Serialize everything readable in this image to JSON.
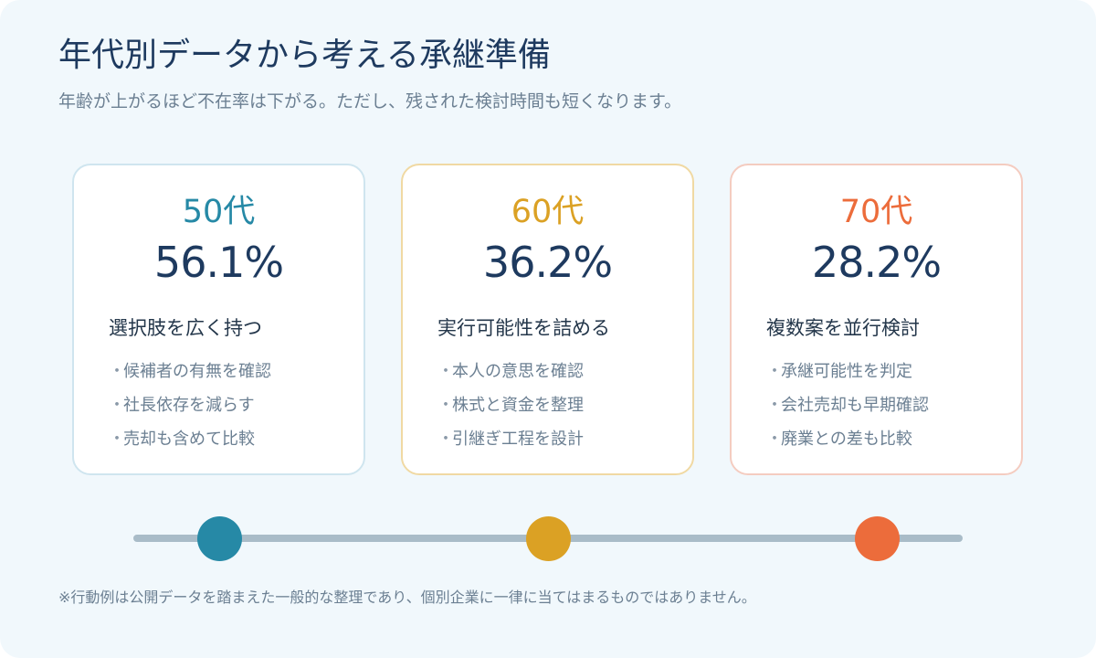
{
  "header": {
    "title": "年代別データから考える承継準備",
    "subtitle": "年齢が上がるほど不在率は下がる。ただし、残された検討時間も短くなります。"
  },
  "colors": {
    "fifties": "#2689a6",
    "sixties": "#dba124",
    "seventies": "#ec6c3b"
  },
  "cards": [
    {
      "age": "50代",
      "rate": "56.1%",
      "heading": "選択肢を広く持つ",
      "items": [
        "候補者の有無を確認",
        "社長依存を減らす",
        "売却も含めて比較"
      ]
    },
    {
      "age": "60代",
      "rate": "36.2%",
      "heading": "実行可能性を詰める",
      "items": [
        "本人の意思を確認",
        "株式と資金を整理",
        "引継ぎ工程を設計"
      ]
    },
    {
      "age": "70代",
      "rate": "28.2%",
      "heading": "複数案を並行検討",
      "items": [
        "承継可能性を判定",
        "会社売却も早期確認",
        "廃業との差も比較"
      ]
    }
  ],
  "bullet_symbol": "・",
  "footnote": "※行動例は公開データを踏まえた一般的な整理であり、個別企業に一律に当てはまるものではありません。"
}
